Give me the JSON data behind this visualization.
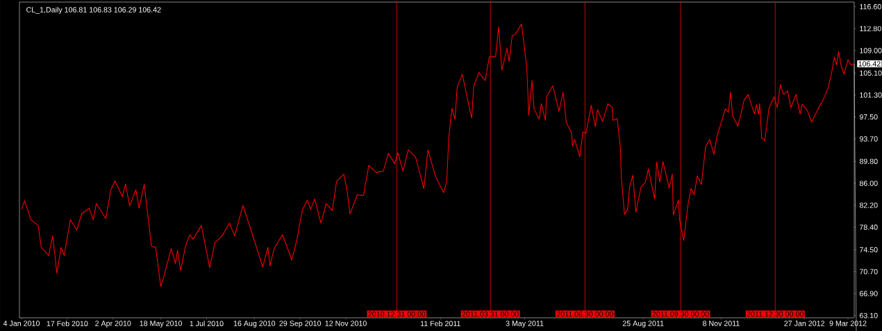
{
  "chart_data": {
    "type": "line",
    "title": "CL_1,Daily  106.81 106.83 106.29 106.42",
    "x": [
      "2010-01-04",
      "2010-01-07",
      "2010-01-13",
      "2010-01-20",
      "2010-01-23",
      "2010-01-30",
      "2010-02-03",
      "2010-02-07",
      "2010-02-11",
      "2010-02-14",
      "2010-02-20",
      "2010-02-26",
      "2010-03-03",
      "2010-03-10",
      "2010-03-14",
      "2010-03-17",
      "2010-03-26",
      "2010-03-31",
      "2010-04-04",
      "2010-04-11",
      "2010-04-14",
      "2010-04-18",
      "2010-04-24",
      "2010-04-27",
      "2010-05-02",
      "2010-05-09",
      "2010-05-13",
      "2010-05-18",
      "2010-05-21",
      "2010-05-28",
      "2010-06-01",
      "2010-06-03",
      "2010-06-06",
      "2010-06-11",
      "2010-06-15",
      "2010-06-18",
      "2010-06-26",
      "2010-07-04",
      "2010-07-09",
      "2010-07-16",
      "2010-07-23",
      "2010-07-28",
      "2010-08-05",
      "2010-08-12",
      "2010-08-17",
      "2010-08-24",
      "2010-08-29",
      "2010-08-31",
      "2010-09-04",
      "2010-09-12",
      "2010-09-21",
      "2010-09-26",
      "2010-10-01",
      "2010-10-06",
      "2010-10-09",
      "2010-10-13",
      "2010-10-19",
      "2010-10-24",
      "2010-10-30",
      "2010-11-03",
      "2010-11-10",
      "2010-11-13",
      "2010-11-16",
      "2010-11-23",
      "2010-11-29",
      "2010-12-04",
      "2010-12-11",
      "2010-12-18",
      "2010-12-23",
      "2010-12-29",
      "2011-01-01",
      "2011-01-06",
      "2011-01-11",
      "2011-01-18",
      "2011-01-26",
      "2011-01-30",
      "2011-02-06",
      "2011-02-14",
      "2011-02-17",
      "2011-02-19",
      "2011-02-22",
      "2011-02-25",
      "2011-02-27",
      "2011-03-04",
      "2011-03-10",
      "2011-03-13",
      "2011-03-15",
      "2011-03-20",
      "2011-03-26",
      "2011-03-30",
      "2011-04-05",
      "2011-04-08",
      "2011-04-11",
      "2011-04-16",
      "2011-04-18",
      "2011-04-21",
      "2011-04-24",
      "2011-04-30",
      "2011-05-05",
      "2011-05-07",
      "2011-05-10",
      "2011-05-12",
      "2011-05-17",
      "2011-05-19",
      "2011-05-23",
      "2011-05-24",
      "2011-05-30",
      "2011-06-05",
      "2011-06-09",
      "2011-06-12",
      "2011-06-17",
      "2011-06-18",
      "2011-06-20",
      "2011-06-25",
      "2011-06-28",
      "2011-07-01",
      "2011-07-06",
      "2011-07-10",
      "2011-07-12",
      "2011-07-17",
      "2011-07-22",
      "2011-07-26",
      "2011-07-27",
      "2011-07-31",
      "2011-08-03",
      "2011-08-04",
      "2011-08-07",
      "2011-08-10",
      "2011-08-12",
      "2011-08-15",
      "2011-08-18",
      "2011-08-23",
      "2011-08-27",
      "2011-08-30",
      "2011-09-05",
      "2011-09-07",
      "2011-09-10",
      "2011-09-13",
      "2011-09-19",
      "2011-09-22",
      "2011-09-23",
      "2011-09-28",
      "2011-09-29",
      "2011-10-03",
      "2011-10-07",
      "2011-10-10",
      "2011-10-13",
      "2011-10-16",
      "2011-10-20",
      "2011-10-24",
      "2011-10-28",
      "2011-11-01",
      "2011-11-04",
      "2011-11-08",
      "2011-11-12",
      "2011-11-15",
      "2011-11-17",
      "2011-11-19",
      "2011-11-24",
      "2011-11-27",
      "2011-11-30",
      "2011-12-04",
      "2011-12-10",
      "2011-12-12",
      "2011-12-14",
      "2011-12-15",
      "2011-12-17",
      "2011-12-20",
      "2011-12-24",
      "2011-12-29",
      "2012-01-01",
      "2012-01-04",
      "2012-01-07",
      "2012-01-11",
      "2012-01-14",
      "2012-01-19",
      "2012-01-23",
      "2012-01-25",
      "2012-01-30",
      "2012-02-03",
      "2012-02-06",
      "2012-02-11",
      "2012-02-14",
      "2012-02-19",
      "2012-02-22",
      "2012-02-25",
      "2012-02-27",
      "2012-02-29",
      "2012-03-02",
      "2012-03-05",
      "2012-03-09",
      "2012-03-12",
      "2012-03-14"
    ],
    "series": [
      {
        "color": "#ff0000",
        "values": [
          81.5,
          83.0,
          79.7,
          78.7,
          74.9,
          73.5,
          76.9,
          70.4,
          74.9,
          73.5,
          79.7,
          77.9,
          80.7,
          81.7,
          79.7,
          82.5,
          79.9,
          84.9,
          86.4,
          83.7,
          85.9,
          82.1,
          84.9,
          81.7,
          85.8,
          75.1,
          74.9,
          68.1,
          69.9,
          74.7,
          72.1,
          74.4,
          70.9,
          75.3,
          77.1,
          76.3,
          78.7,
          71.4,
          75.7,
          76.9,
          79.1,
          76.9,
          82.2,
          78.3,
          75.5,
          71.5,
          74.9,
          71.7,
          74.7,
          77.1,
          72.7,
          76.3,
          81.3,
          83.1,
          81.5,
          83.3,
          79.1,
          82.5,
          81.3,
          86.3,
          87.6,
          84.9,
          80.7,
          84.0,
          83.9,
          89.1,
          87.9,
          88.1,
          91.2,
          89.4,
          91.3,
          88.1,
          91.8,
          90.6,
          85.1,
          91.8,
          87.3,
          84.4,
          86.3,
          93.9,
          99.0,
          97.1,
          102.6,
          104.9,
          99.8,
          97.3,
          102.8,
          105.2,
          103.8,
          107.9,
          108.0,
          113.1,
          105.6,
          109.4,
          107.1,
          111.6,
          111.8,
          113.6,
          106.1,
          97.8,
          103.8,
          98.9,
          97.1,
          99.8,
          96.9,
          101.0,
          102.9,
          98.5,
          101.8,
          96.6,
          94.8,
          92.5,
          93.6,
          90.6,
          94.9,
          94.7,
          99.5,
          95.8,
          98.8,
          96.7,
          99.8,
          99.2,
          96.9,
          97.2,
          92.3,
          87.0,
          80.6,
          81.5,
          85.5,
          87.4,
          81.0,
          85.4,
          86.1,
          88.5,
          83.3,
          89.7,
          86.2,
          89.8,
          85.2,
          87.6,
          80.5,
          83.1,
          79.7,
          76.1,
          82.2,
          85.1,
          84.0,
          87.3,
          85.8,
          92.3,
          93.6,
          91.0,
          94.2,
          96.5,
          98.9,
          98.3,
          101.8,
          97.7,
          95.9,
          98.0,
          100.4,
          101.4,
          98.0,
          99.6,
          98.0,
          99.8,
          93.9,
          93.4,
          99.0,
          101.0,
          99.1,
          103.1,
          101.4,
          102.0,
          99.1,
          101.4,
          98.0,
          99.7,
          98.6,
          96.6,
          97.7,
          99.5,
          100.4,
          102.6,
          104.9,
          107.9,
          106.5,
          108.8,
          106.7,
          104.9,
          107.4,
          106.5,
          106.7
        ]
      }
    ],
    "xlim": [
      "2010-01-02",
      "2012-03-15"
    ],
    "xticks": [
      {
        "value": "2010-01-04",
        "label": "4 Jan 2010"
      },
      {
        "value": "2010-02-17",
        "label": "17 Feb 2010"
      },
      {
        "value": "2010-04-02",
        "label": "2 Apr 2010"
      },
      {
        "value": "2010-05-18",
        "label": "18 May 2010"
      },
      {
        "value": "2010-07-01",
        "label": "1 Jul 2010"
      },
      {
        "value": "2010-08-16",
        "label": "16 Aug 2010"
      },
      {
        "value": "2010-09-29",
        "label": "29 Sep 2010"
      },
      {
        "value": "2010-11-12",
        "label": "12 Nov 2010"
      },
      {
        "value": "2011-02-11",
        "label": "11 Feb 2011"
      },
      {
        "value": "2011-05-03",
        "label": "3 May 2011"
      },
      {
        "value": "2011-08-25",
        "label": "25 Aug 2011"
      },
      {
        "value": "2011-11-08",
        "label": "8 Nov 2011"
      },
      {
        "value": "2012-01-27",
        "label": "27 Jan 2012"
      },
      {
        "value": "2012-03-09",
        "label": "9 Mar 2012"
      }
    ],
    "ylim": [
      62.7,
      117.4
    ],
    "yticks": [
      {
        "value": 63.1,
        "label": "63.10"
      },
      {
        "value": 66.9,
        "label": "66.90"
      },
      {
        "value": 70.7,
        "label": "70.70"
      },
      {
        "value": 74.5,
        "label": "74.50"
      },
      {
        "value": 78.4,
        "label": "78.40"
      },
      {
        "value": 82.2,
        "label": "82.20"
      },
      {
        "value": 86.0,
        "label": "86.00"
      },
      {
        "value": 89.8,
        "label": "89.80"
      },
      {
        "value": 93.7,
        "label": "93.70"
      },
      {
        "value": 97.5,
        "label": "97.50"
      },
      {
        "value": 101.3,
        "label": "101.30"
      },
      {
        "value": 105.1,
        "label": "105.10"
      },
      {
        "value": 109.0,
        "label": "109.00"
      },
      {
        "value": 112.8,
        "label": "112.80"
      },
      {
        "value": 116.6,
        "label": "116.60"
      }
    ],
    "ref_lines": [
      {
        "axis": "x",
        "value": "2010-12-31",
        "label": "2010.12.31 00:00",
        "color": "#ff0000"
      },
      {
        "axis": "x",
        "value": "2011-03-31",
        "label": "2011.03.31 00:00",
        "color": "#ff0000"
      },
      {
        "axis": "x",
        "value": "2011-06-30",
        "label": "2011.06.30 00:00",
        "color": "#ff0000"
      },
      {
        "axis": "x",
        "value": "2011-09-30",
        "label": "2011.09.30 00:00",
        "color": "#ff0000"
      },
      {
        "axis": "x",
        "value": "2011-12-30",
        "label": "2011.12.30 00:00",
        "color": "#ff0000"
      }
    ],
    "annotations": [
      "106.42"
    ]
  }
}
